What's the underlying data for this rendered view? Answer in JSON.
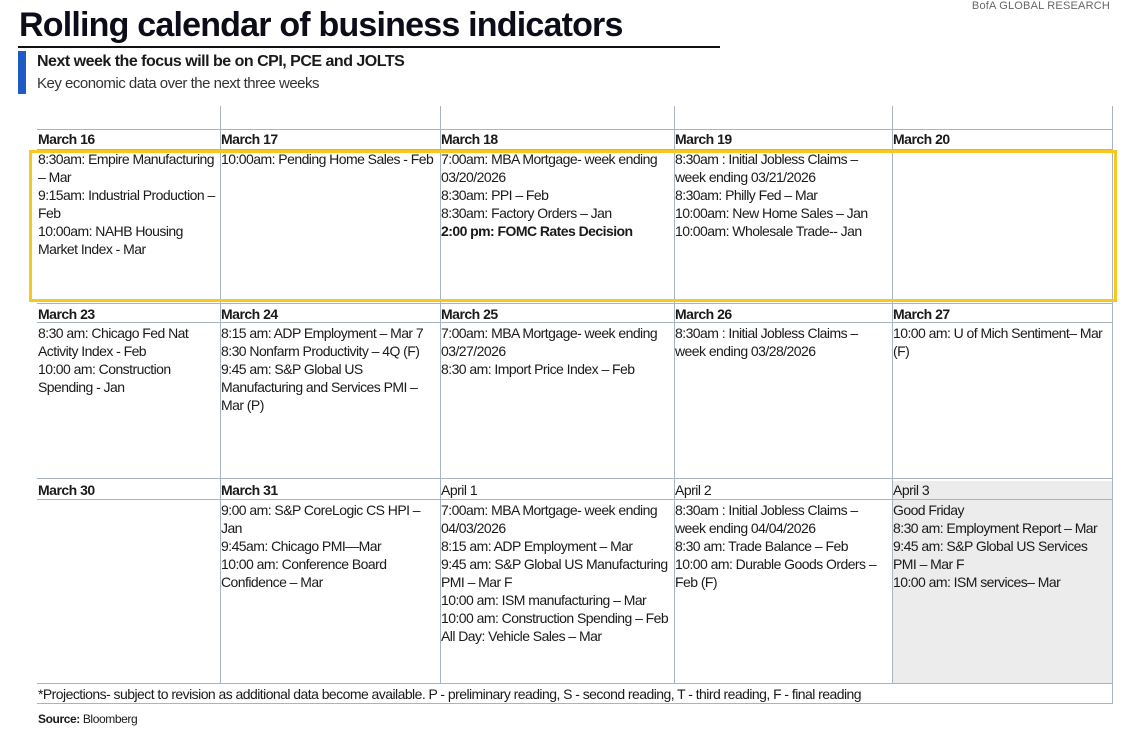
{
  "brand": "BofA GLOBAL RESEARCH",
  "title": "Rolling calendar of business indicators",
  "subtitle": "Next week the focus will be on CPI, PCE and JOLTS",
  "description": "Key economic data over the next three weeks",
  "weeks": [
    {
      "days": [
        {
          "label": "March 16",
          "bold": true,
          "events": [
            "8:30am: Empire Manufacturing – Mar",
            "9:15am: Industrial Production – Feb",
            "10:00am: NAHB Housing Market Index - Mar"
          ]
        },
        {
          "label": "March 17",
          "bold": true,
          "events": [
            "10:00am: Pending Home Sales - Feb"
          ]
        },
        {
          "label": "March 18",
          "bold": true,
          "events": [
            "7:00am: MBA Mortgage- week ending 03/20/2026",
            "8:30am: PPI – Feb",
            "8:30am: Factory Orders – Jan",
            "2:00 pm: FOMC Rates Decision"
          ]
        },
        {
          "label": "March 19",
          "bold": true,
          "events": [
            "8:30am : Initial Jobless Claims – week ending 03/21/2026",
            "8:30am: Philly Fed – Mar",
            "10:00am: New Home Sales – Jan",
            "10:00am: Wholesale Trade-- Jan"
          ]
        },
        {
          "label": "March 20",
          "bold": true,
          "events": []
        }
      ]
    },
    {
      "days": [
        {
          "label": "March 23",
          "bold": true,
          "events": [
            "8:30 am: Chicago Fed Nat Activity Index - Feb",
            "10:00 am: Construction Spending - Jan"
          ]
        },
        {
          "label": "March 24",
          "bold": true,
          "events": [
            "8:15 am: ADP Employment – Mar 7",
            "8:30 Nonfarm Productivity – 4Q (F)",
            "9:45 am: S&P Global US Manufacturing and Services PMI – Mar (P)"
          ]
        },
        {
          "label": "March 25",
          "bold": true,
          "events": [
            "7:00am: MBA Mortgage- week ending 03/27/2026",
            "8:30 am: Import Price Index – Feb"
          ]
        },
        {
          "label": "March 26",
          "bold": true,
          "events": [
            "8:30am : Initial Jobless Claims – week ending 03/28/2026"
          ]
        },
        {
          "label": "March 27",
          "bold": true,
          "events": [
            "10:00 am: U of Mich Sentiment– Mar (F)"
          ]
        }
      ]
    },
    {
      "days": [
        {
          "label": "March 30",
          "bold": true,
          "events": []
        },
        {
          "label": "March 31",
          "bold": true,
          "events": [
            "9:00 am: S&P CoreLogic CS HPI – Jan",
            "9:45am: Chicago PMI—Mar",
            "10:00 am: Conference Board Confidence – Mar"
          ]
        },
        {
          "label": "April 1",
          "bold": false,
          "events": [
            "7:00am: MBA Mortgage- week ending 04/03/2026",
            "8:15 am: ADP Employment – Mar",
            "9:45 am: S&P Global US Manufacturing PMI – Mar F",
            "10:00 am: ISM manufacturing – Mar",
            "10:00 am: Construction Spending – Feb",
            "All Day: Vehicle Sales – Mar"
          ]
        },
        {
          "label": "April 2",
          "bold": false,
          "events": [
            "8:30am : Initial Jobless Claims – week ending 04/04/2026",
            "8:30 am: Trade Balance – Feb",
            "10:00 am: Durable Goods Orders – Feb (F)"
          ]
        },
        {
          "label": "April 3",
          "bold": false,
          "events": [
            "Good Friday",
            "8:30 am: Employment Report – Mar",
            "9:45 am: S&P Global US Services PMI – Mar F",
            "10:00 am: ISM services– Mar"
          ]
        }
      ]
    }
  ],
  "highlighted_event": "2:00 pm: FOMC Rates Decision",
  "footnote": "*Projections- subject to revision as additional data become available. P - preliminary reading, S - second reading, T - third reading, F - final reading",
  "source_label": "Source:",
  "source_value": "Bloomberg",
  "colors": {
    "accent": "#1f5bc6",
    "highlight_box": "#f7c81e",
    "holiday_bg": "#ececec",
    "grid": "#a9b3c2"
  }
}
